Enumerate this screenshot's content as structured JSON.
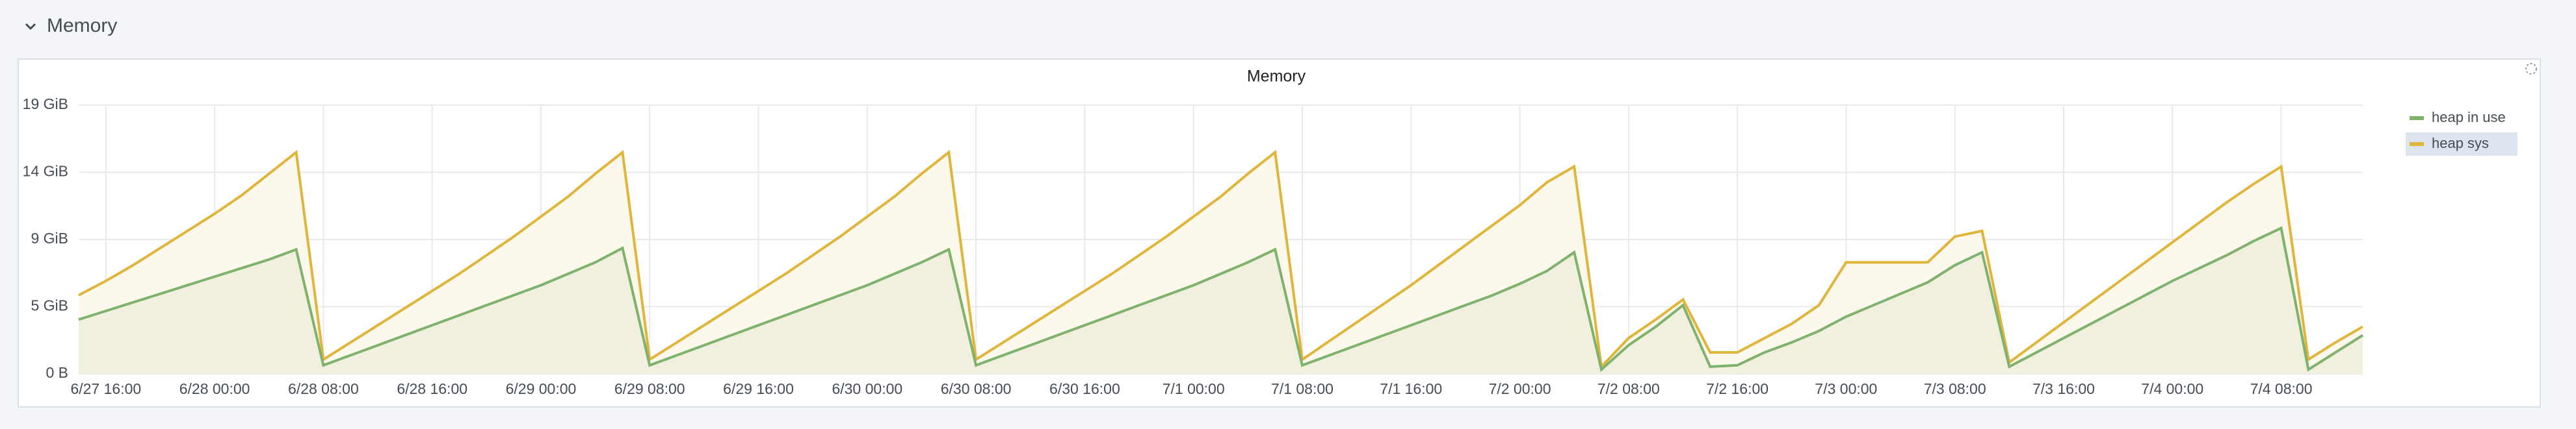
{
  "row": {
    "title": "Memory"
  },
  "chart_data": {
    "type": "line",
    "title": "Memory",
    "categories": [
      null,
      "6/27 16:00",
      null,
      null,
      null,
      "6/28 00:00",
      null,
      null,
      null,
      "6/28 08:00",
      null,
      null,
      null,
      "6/28 16:00",
      null,
      null,
      null,
      "6/29 00:00",
      null,
      null,
      null,
      "6/29 08:00",
      null,
      null,
      null,
      "6/29 16:00",
      null,
      null,
      null,
      "6/30 00:00",
      null,
      null,
      null,
      "6/30 08:00",
      null,
      null,
      null,
      "6/30 16:00",
      null,
      null,
      null,
      "7/1 00:00",
      null,
      null,
      null,
      "7/1 08:00",
      null,
      null,
      null,
      "7/1 16:00",
      null,
      null,
      null,
      "7/2 00:00",
      null,
      null,
      null,
      "7/2 08:00",
      null,
      null,
      null,
      "7/2 16:00",
      null,
      null,
      null,
      "7/3 00:00",
      null,
      null,
      null,
      "7/3 08:00",
      null,
      null,
      null,
      "7/3 16:00",
      null,
      null,
      null,
      "7/4 00:00",
      null,
      null,
      null,
      "7/4 08:00",
      null,
      null,
      null
    ],
    "series": [
      {
        "name": "heap in use",
        "color": "#7eb26d",
        "fill": "#efeedd",
        "values": [
          3.8,
          4.4,
          5,
          5.6,
          6.2,
          6.8,
          7.4,
          8,
          8.7,
          0.6,
          1.3,
          2,
          2.7,
          3.4,
          4.1,
          4.8,
          5.5,
          6.2,
          7,
          7.8,
          8.8,
          0.6,
          1.3,
          2,
          2.7,
          3.4,
          4.1,
          4.8,
          5.5,
          6.2,
          7,
          7.8,
          8.7,
          0.6,
          1.3,
          2,
          2.7,
          3.4,
          4.1,
          4.8,
          5.5,
          6.2,
          7,
          7.8,
          8.7,
          0.6,
          1.3,
          2,
          2.7,
          3.4,
          4.1,
          4.8,
          5.5,
          6.3,
          7.2,
          8.5,
          0.3,
          2,
          3.3,
          4.8,
          0.5,
          0.6,
          1.5,
          2.2,
          3,
          4,
          4.8,
          5.6,
          6.4,
          7.6,
          8.5,
          0.5,
          1.5,
          2.5,
          3.5,
          4.5,
          5.5,
          6.5,
          7.4,
          8.3,
          9.3,
          10.2,
          0.3,
          1.5,
          2.7
        ]
      },
      {
        "name": "heap sys",
        "color": "#e0b53b",
        "fill": "#fcf7ea",
        "values": [
          5.5,
          6.5,
          7.6,
          8.8,
          10,
          11.2,
          12.5,
          14,
          15.5,
          1,
          2.2,
          3.4,
          4.6,
          5.8,
          7,
          8.3,
          9.6,
          11,
          12.4,
          14,
          15.5,
          1,
          2.2,
          3.4,
          4.6,
          5.8,
          7,
          8.3,
          9.6,
          11,
          12.4,
          14,
          15.5,
          1,
          2.2,
          3.4,
          4.6,
          5.8,
          7,
          8.3,
          9.6,
          11,
          12.4,
          14,
          15.5,
          1,
          2.3,
          3.6,
          4.9,
          6.2,
          7.6,
          9,
          10.4,
          11.8,
          13.4,
          14.5,
          0.5,
          2.5,
          3.8,
          5.2,
          1.5,
          1.5,
          2.5,
          3.5,
          4.8,
          7.8,
          7.8,
          7.8,
          7.8,
          9.6,
          10,
          0.8,
          2.2,
          3.6,
          5,
          6.4,
          7.8,
          9.2,
          10.6,
          12,
          13.3,
          14.5,
          1,
          2.2,
          3.3
        ]
      }
    ],
    "ylim": [
      0,
      18.8
    ],
    "yticks": [
      {
        "value": 0,
        "label": "0 B"
      },
      {
        "value": 4.7,
        "label": "5 GiB"
      },
      {
        "value": 9.4,
        "label": "9 GiB"
      },
      {
        "value": 14.1,
        "label": "14 GiB"
      },
      {
        "value": 18.8,
        "label": "19 GiB"
      }
    ],
    "grid": true,
    "legend": "right"
  }
}
